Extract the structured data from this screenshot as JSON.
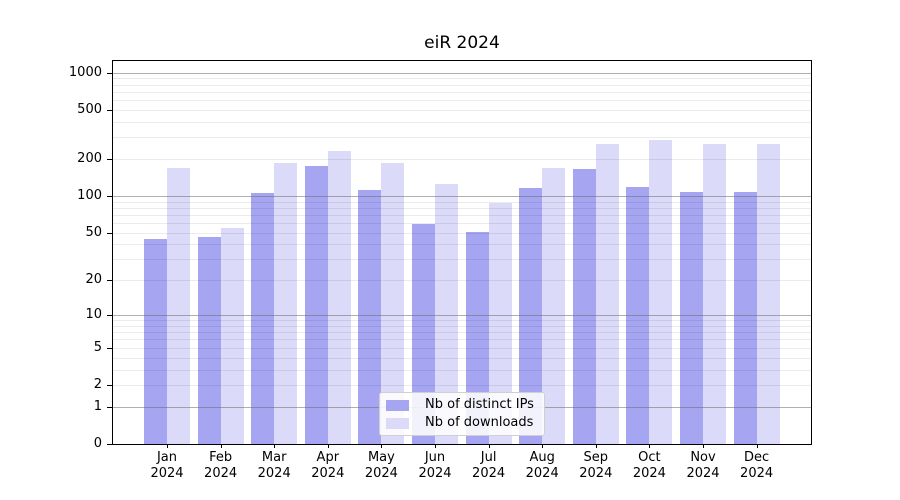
{
  "figure": {
    "background": "#ffffff"
  },
  "colors": {
    "ips_bar": "#a5a5f2",
    "downloads_bar": "#dbdbf9",
    "grid_major": "#6e6e6e",
    "grid_minor": "#e9e9e9",
    "spine": "#000000",
    "text": "#000000",
    "legend_border": "#d0d0d0"
  },
  "legend": {
    "position": "lower center",
    "items": [
      {
        "label": "Nb of distinct IPs",
        "color": "#a5a5f2"
      },
      {
        "label": "Nb of downloads",
        "color": "#dbdbf9"
      }
    ]
  },
  "chart_data": {
    "type": "bar",
    "title": "eiR 2024",
    "categories": [
      "Jan 2024",
      "Feb 2024",
      "Mar 2024",
      "Apr 2024",
      "May 2024",
      "Jun 2024",
      "Jul 2024",
      "Aug 2024",
      "Sep 2024",
      "Oct 2024",
      "Nov 2024",
      "Dec 2024"
    ],
    "series": [
      {
        "name": "Nb of distinct IPs",
        "color": "#a5a5f2",
        "values": [
          44,
          46,
          105,
          175,
          111,
          59,
          51,
          116,
          166,
          118,
          108,
          107
        ]
      },
      {
        "name": "Nb of downloads",
        "color": "#dbdbf9",
        "values": [
          168,
          55,
          185,
          230,
          187,
          126,
          88,
          169,
          265,
          287,
          263,
          265
        ]
      }
    ],
    "xlabel": "",
    "ylabel": "",
    "yscale": "log1p",
    "ylim": [
      0,
      1240
    ],
    "yticks": [
      0,
      1,
      2,
      5,
      10,
      20,
      50,
      100,
      200,
      500,
      1000
    ],
    "grid": "on",
    "grid_minor_values": [
      2,
      3,
      4,
      5,
      6,
      7,
      8,
      9,
      20,
      30,
      40,
      50,
      60,
      70,
      80,
      90,
      200,
      300,
      400,
      500,
      600,
      700,
      800,
      900
    ],
    "grid_major_values": [
      1,
      10,
      100,
      1000
    ],
    "legend_position": "lower center"
  }
}
